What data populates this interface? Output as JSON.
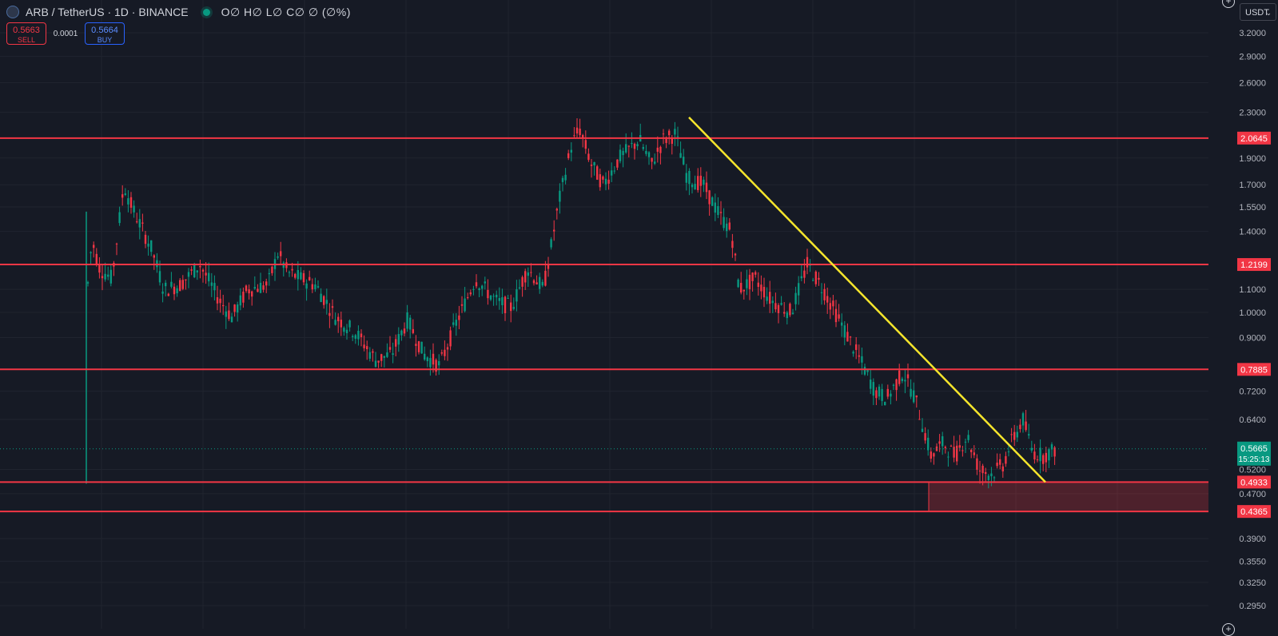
{
  "header": {
    "symbol": "ARB / TetherUS · 1D · BINANCE",
    "ohlc": "O∅ H∅ L∅ C∅ ∅ (∅%)"
  },
  "trade": {
    "sell_price": "0.5663",
    "sell_label": "SELL",
    "spread": "0.0001",
    "buy_price": "0.5664",
    "buy_label": "BUY"
  },
  "currency_selector": "USDT",
  "colors": {
    "background": "#161a25",
    "up": "#089981",
    "down": "#f23645",
    "level_line": "#f23645",
    "trendline": "#f5e52c"
  },
  "chart_data": {
    "type": "candlestick",
    "symbol": "ARB/USDT",
    "interval": "1D",
    "exchange": "BINANCE",
    "scale": "log",
    "y_ticks": [
      "3.2000",
      "2.9000",
      "2.6000",
      "2.3000",
      "1.9000",
      "1.7000",
      "1.5500",
      "1.4000",
      "1.1000",
      "1.0000",
      "0.9000",
      "0.7200",
      "0.6400",
      "0.5200",
      "0.4700",
      "0.3900",
      "0.3550",
      "0.3250",
      "0.2950"
    ],
    "horizontal_levels": [
      "2.0645",
      "1.2199",
      "0.7885",
      "0.4933",
      "0.4365"
    ],
    "support_zone": {
      "top": 0.4933,
      "bottom": 0.4365
    },
    "trendline": {
      "from_price": 2.25,
      "to_price": 0.4933
    },
    "current_price": {
      "value": "0.5665",
      "countdown": "15:25:13"
    },
    "ylim": [
      0.28,
      3.4
    ]
  }
}
